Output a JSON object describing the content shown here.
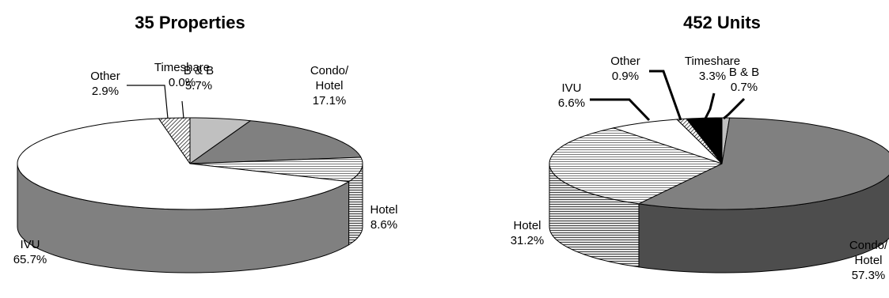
{
  "chart_data": [
    {
      "type": "pie",
      "title": "35 Properties",
      "slices": [
        {
          "label": "B & B",
          "value": 5.7,
          "display": "5.7%"
        },
        {
          "label": "Condo/ Hotel",
          "value": 17.1,
          "display": "17.1%"
        },
        {
          "label": "Hotel",
          "value": 8.6,
          "display": "8.6%"
        },
        {
          "label": "IVU",
          "value": 65.7,
          "display": "65.7%"
        },
        {
          "label": "Other",
          "value": 2.9,
          "display": "2.9%"
        },
        {
          "label": "Timeshare",
          "value": 0.0,
          "display": "0.0%"
        }
      ]
    },
    {
      "type": "pie",
      "title": "452 Units",
      "slices": [
        {
          "label": "B & B",
          "value": 0.7,
          "display": "0.7%"
        },
        {
          "label": "Condo/ Hotel",
          "value": 57.3,
          "display": "57.3%"
        },
        {
          "label": "Hotel",
          "value": 31.2,
          "display": "31.2%"
        },
        {
          "label": "IVU",
          "value": 6.6,
          "display": "6.6%"
        },
        {
          "label": "Other",
          "value": 0.9,
          "display": "0.9%"
        },
        {
          "label": "Timeshare",
          "value": 3.3,
          "display": "3.3%"
        }
      ]
    }
  ],
  "styles": {
    "B & B": {
      "top": "#c0c0c0",
      "side": "#a0a0a0"
    },
    "Condo/ Hotel": {
      "top": "#808080",
      "side": "#4d4d4d"
    },
    "Hotel": {
      "top": "hatch-h",
      "side": "hatch-h-dark"
    },
    "IVU": {
      "top": "#ffffff",
      "side": "#808080"
    },
    "Other": {
      "top": "hatch-d",
      "side": "hatch-d"
    },
    "Timeshare": {
      "top": "#000000",
      "side": "#000000"
    }
  }
}
